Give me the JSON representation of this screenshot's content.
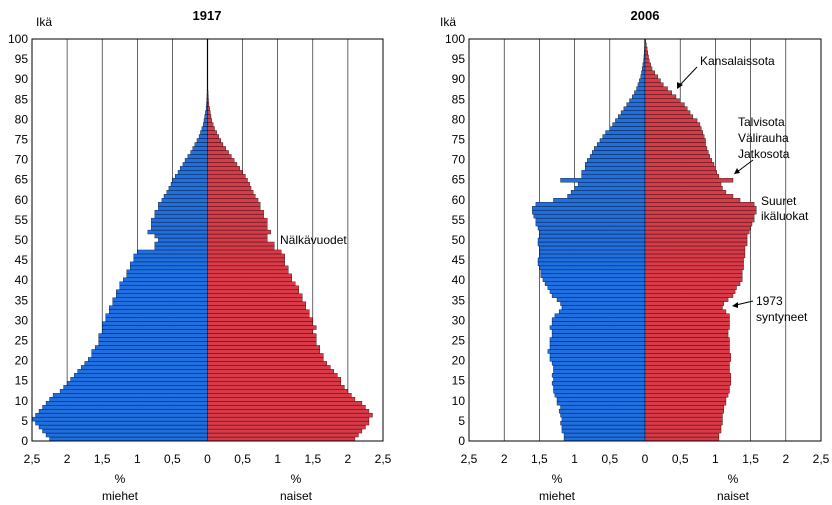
{
  "chart_data": [
    {
      "type": "bar",
      "orientation": "horizontal-population-pyramid",
      "title": "1917",
      "ylabel": "Ikä",
      "age_ticks": [
        "0",
        "5",
        "10",
        "15",
        "20",
        "25",
        "30",
        "35",
        "40",
        "45",
        "50",
        "55",
        "60",
        "65",
        "70",
        "75",
        "80",
        "85",
        "90",
        "95",
        "100"
      ],
      "xlim": [
        -2.5,
        2.5
      ],
      "x_ticks": [
        "2,5",
        "2",
        "1,5",
        "1",
        "0,5",
        "0",
        "0,5",
        "1",
        "1,5",
        "2",
        "2,5"
      ],
      "left_axis_unit": "%",
      "left_axis_label": "miehet",
      "right_axis_unit": "%",
      "right_axis_label": "naiset",
      "grid": "vertical",
      "colors": {
        "miehet": "#1f6fe0",
        "naiset": "#d93a48"
      },
      "series": [
        {
          "key": "miehet",
          "values": [
            2.25,
            2.3,
            2.35,
            2.4,
            2.45,
            2.5,
            2.45,
            2.4,
            2.35,
            2.3,
            2.25,
            2.2,
            2.1,
            2.05,
            2.0,
            1.95,
            1.9,
            1.85,
            1.8,
            1.75,
            1.7,
            1.65,
            1.65,
            1.6,
            1.55,
            1.55,
            1.55,
            1.5,
            1.5,
            1.5,
            1.45,
            1.45,
            1.4,
            1.4,
            1.35,
            1.35,
            1.3,
            1.3,
            1.25,
            1.25,
            1.2,
            1.15,
            1.15,
            1.1,
            1.1,
            1.05,
            1.05,
            1.0,
            0.75,
            0.75,
            0.7,
            0.75,
            0.85,
            0.8,
            0.8,
            0.8,
            0.75,
            0.75,
            0.7,
            0.7,
            0.65,
            0.62,
            0.58,
            0.55,
            0.52,
            0.5,
            0.46,
            0.42,
            0.39,
            0.35,
            0.32,
            0.28,
            0.24,
            0.21,
            0.18,
            0.15,
            0.12,
            0.1,
            0.08,
            0.06,
            0.05,
            0.04,
            0.03,
            0.02,
            0.015,
            0.01,
            0.008,
            0.006,
            0.004,
            0.003,
            0.002,
            0,
            0,
            0,
            0,
            0,
            0,
            0,
            0,
            0,
            0
          ]
        },
        {
          "key": "naiset",
          "values": [
            2.1,
            2.15,
            2.2,
            2.25,
            2.3,
            2.3,
            2.35,
            2.3,
            2.25,
            2.2,
            2.1,
            2.05,
            2.0,
            1.95,
            1.9,
            1.9,
            1.85,
            1.8,
            1.75,
            1.7,
            1.65,
            1.65,
            1.6,
            1.6,
            1.55,
            1.55,
            1.55,
            1.5,
            1.55,
            1.5,
            1.5,
            1.45,
            1.45,
            1.4,
            1.4,
            1.35,
            1.35,
            1.3,
            1.3,
            1.25,
            1.2,
            1.2,
            1.15,
            1.15,
            1.1,
            1.1,
            1.1,
            1.05,
            0.95,
            0.95,
            0.85,
            0.85,
            0.9,
            0.85,
            0.85,
            0.85,
            0.8,
            0.8,
            0.75,
            0.75,
            0.72,
            0.68,
            0.65,
            0.62,
            0.6,
            0.57,
            0.54,
            0.5,
            0.46,
            0.42,
            0.38,
            0.34,
            0.3,
            0.26,
            0.22,
            0.19,
            0.16,
            0.13,
            0.1,
            0.08,
            0.06,
            0.05,
            0.04,
            0.03,
            0.02,
            0.015,
            0.01,
            0.008,
            0.005,
            0.003,
            0.002,
            0,
            0,
            0,
            0,
            0,
            0,
            0,
            0,
            0,
            0
          ]
        }
      ],
      "annotations": [
        {
          "text": "Nälkävuodet",
          "age": 50
        }
      ]
    },
    {
      "type": "bar",
      "orientation": "horizontal-population-pyramid",
      "title": "2006",
      "ylabel": "Ikä",
      "age_ticks": [
        "0",
        "5",
        "10",
        "15",
        "20",
        "25",
        "30",
        "35",
        "40",
        "45",
        "50",
        "55",
        "60",
        "65",
        "70",
        "75",
        "80",
        "85",
        "90",
        "95",
        "100"
      ],
      "xlim": [
        -2.5,
        2.5
      ],
      "x_ticks": [
        "2,5",
        "2",
        "1,5",
        "1",
        "0,5",
        "0",
        "0,5",
        "1",
        "1,5",
        "2",
        "2,5"
      ],
      "left_axis_unit": "%",
      "left_axis_label": "miehet",
      "right_axis_unit": "%",
      "right_axis_label": "naiset",
      "grid": "vertical",
      "colors": {
        "miehet": "#1f6fe0",
        "naiset": "#d93a48"
      },
      "series": [
        {
          "key": "miehet",
          "values": [
            1.15,
            1.15,
            1.18,
            1.18,
            1.2,
            1.18,
            1.2,
            1.22,
            1.2,
            1.25,
            1.25,
            1.28,
            1.3,
            1.3,
            1.32,
            1.3,
            1.32,
            1.3,
            1.3,
            1.32,
            1.35,
            1.35,
            1.38,
            1.35,
            1.35,
            1.35,
            1.32,
            1.32,
            1.35,
            1.32,
            1.32,
            1.28,
            1.22,
            1.18,
            1.2,
            1.25,
            1.32,
            1.35,
            1.38,
            1.42,
            1.45,
            1.48,
            1.48,
            1.5,
            1.52,
            1.52,
            1.5,
            1.5,
            1.5,
            1.52,
            1.52,
            1.5,
            1.5,
            1.52,
            1.55,
            1.55,
            1.58,
            1.6,
            1.6,
            1.55,
            1.3,
            1.1,
            1.05,
            1.0,
            0.95,
            1.2,
            0.9,
            0.9,
            0.85,
            0.85,
            0.82,
            0.78,
            0.75,
            0.72,
            0.68,
            0.64,
            0.6,
            0.56,
            0.5,
            0.46,
            0.42,
            0.38,
            0.34,
            0.3,
            0.26,
            0.22,
            0.18,
            0.15,
            0.12,
            0.1,
            0.08,
            0.06,
            0.05,
            0.04,
            0.03,
            0.02,
            0.015,
            0.01,
            0.008,
            0.005,
            0.003
          ]
        },
        {
          "key": "naiset",
          "values": [
            1.05,
            1.05,
            1.08,
            1.08,
            1.1,
            1.1,
            1.1,
            1.12,
            1.12,
            1.15,
            1.15,
            1.18,
            1.2,
            1.2,
            1.22,
            1.22,
            1.22,
            1.2,
            1.2,
            1.2,
            1.22,
            1.22,
            1.2,
            1.2,
            1.2,
            1.2,
            1.18,
            1.18,
            1.2,
            1.2,
            1.2,
            1.2,
            1.15,
            1.1,
            1.12,
            1.18,
            1.25,
            1.28,
            1.3,
            1.35,
            1.38,
            1.38,
            1.38,
            1.4,
            1.4,
            1.4,
            1.42,
            1.42,
            1.42,
            1.45,
            1.45,
            1.45,
            1.48,
            1.5,
            1.52,
            1.55,
            1.55,
            1.58,
            1.58,
            1.55,
            1.35,
            1.25,
            1.15,
            1.1,
            1.08,
            1.25,
            1.05,
            1.02,
            1.0,
            0.98,
            0.95,
            0.92,
            0.9,
            0.88,
            0.86,
            0.86,
            0.84,
            0.82,
            0.8,
            0.78,
            0.74,
            0.68,
            0.64,
            0.6,
            0.56,
            0.5,
            0.44,
            0.38,
            0.32,
            0.26,
            0.22,
            0.18,
            0.14,
            0.1,
            0.08,
            0.06,
            0.05,
            0.04,
            0.03,
            0.02,
            0.01
          ]
        }
      ],
      "annotations": [
        {
          "text": "Kansalaissota",
          "age": 87
        },
        {
          "text": "Talvisota",
          "age": 79
        },
        {
          "text": "Välirauha",
          "age": 75
        },
        {
          "text": "Jatkosota",
          "age": 71
        },
        {
          "text": "Suuret",
          "age": 60
        },
        {
          "text": "ikäluokat",
          "age": 56
        },
        {
          "text": "1973",
          "age": 34
        },
        {
          "text": "syntyneet",
          "age": 30
        }
      ]
    }
  ]
}
